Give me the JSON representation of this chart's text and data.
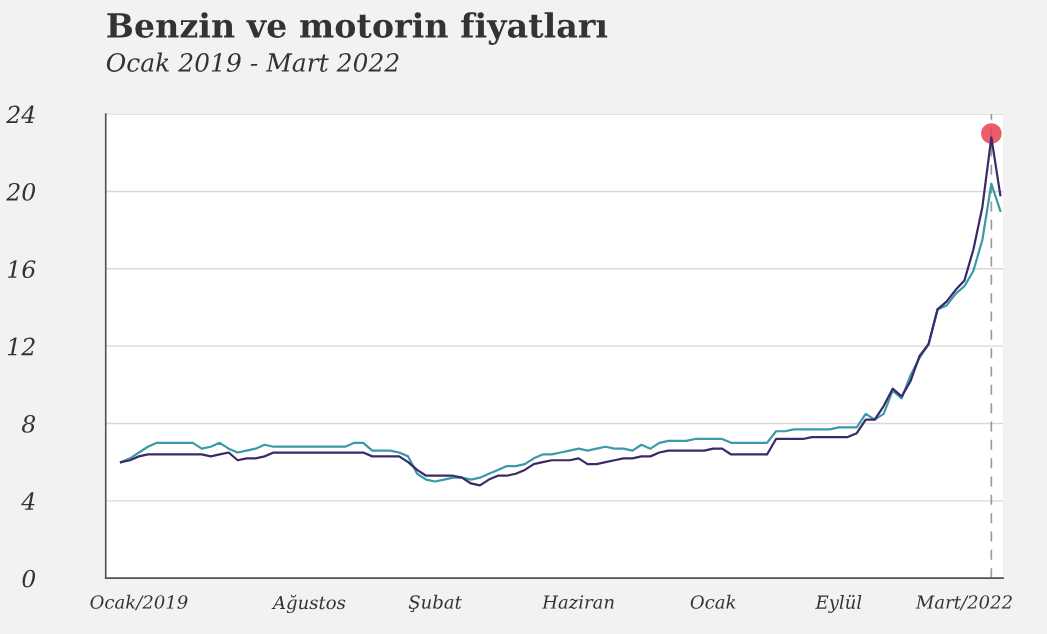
{
  "chart_data": {
    "type": "line",
    "title": "Benzin ve motorin fiyatları",
    "subtitle": "Ocak 2019 - Mart 2022",
    "categories": [
      null,
      null,
      "Ocak/2019",
      null,
      null,
      null,
      null,
      null,
      null,
      null,
      null,
      null,
      null,
      null,
      null,
      null,
      null,
      null,
      null,
      null,
      null,
      "Ağustos",
      null,
      null,
      null,
      null,
      null,
      null,
      null,
      null,
      null,
      null,
      null,
      null,
      null,
      "Şubat",
      null,
      null,
      null,
      null,
      null,
      null,
      null,
      null,
      null,
      null,
      null,
      null,
      null,
      null,
      null,
      "Haziran",
      null,
      null,
      null,
      null,
      null,
      null,
      null,
      null,
      null,
      null,
      null,
      null,
      null,
      null,
      "Ocak",
      null,
      null,
      null,
      null,
      null,
      null,
      null,
      null,
      null,
      null,
      null,
      null,
      null,
      "Eylül",
      null,
      null,
      null,
      null,
      null,
      null,
      null,
      null,
      null,
      null,
      null,
      null,
      null,
      "Mart/2022",
      null,
      null,
      null,
      null
    ],
    "ylim": [
      0,
      24
    ],
    "yticks": [
      0,
      4,
      8,
      12,
      16,
      20,
      24
    ],
    "grid": "y",
    "legend": false,
    "marker": "none",
    "line_style": "solid",
    "series": [
      {
        "color": "#3a9aa8",
        "values": [
          6.0,
          6.2,
          6.5,
          6.8,
          7.0,
          7.0,
          7.0,
          7.0,
          7.0,
          6.7,
          6.8,
          7.0,
          6.7,
          6.5,
          6.6,
          6.7,
          6.9,
          6.8,
          6.8,
          6.8,
          6.8,
          6.8,
          6.8,
          6.8,
          6.8,
          6.8,
          7.0,
          7.0,
          6.6,
          6.6,
          6.6,
          6.5,
          6.3,
          5.4,
          5.1,
          5.0,
          5.1,
          5.2,
          5.2,
          5.1,
          5.2,
          5.4,
          5.6,
          5.8,
          5.8,
          5.9,
          6.2,
          6.4,
          6.4,
          6.5,
          6.6,
          6.7,
          6.6,
          6.7,
          6.8,
          6.7,
          6.7,
          6.6,
          6.9,
          6.7,
          7.0,
          7.1,
          7.1,
          7.1,
          7.2,
          7.2,
          7.2,
          7.2,
          7.0,
          7.0,
          7.0,
          7.0,
          7.0,
          7.6,
          7.6,
          7.7,
          7.7,
          7.7,
          7.7,
          7.7,
          7.8,
          7.8,
          7.8,
          8.5,
          8.2,
          8.5,
          9.7,
          9.3,
          10.5,
          11.4,
          12.1,
          13.9,
          14.1,
          14.7,
          15.1,
          15.9,
          17.5,
          20.4,
          19.0
        ]
      },
      {
        "color": "#3b2a6b",
        "values": [
          6.0,
          6.1,
          6.3,
          6.4,
          6.4,
          6.4,
          6.4,
          6.4,
          6.4,
          6.4,
          6.3,
          6.4,
          6.5,
          6.1,
          6.2,
          6.2,
          6.3,
          6.5,
          6.5,
          6.5,
          6.5,
          6.5,
          6.5,
          6.5,
          6.5,
          6.5,
          6.5,
          6.5,
          6.3,
          6.3,
          6.3,
          6.3,
          6.0,
          5.6,
          5.3,
          5.3,
          5.3,
          5.3,
          5.2,
          4.9,
          4.8,
          5.1,
          5.3,
          5.3,
          5.4,
          5.6,
          5.9,
          6.0,
          6.1,
          6.1,
          6.1,
          6.2,
          5.9,
          5.9,
          6.0,
          6.1,
          6.2,
          6.2,
          6.3,
          6.3,
          6.5,
          6.6,
          6.6,
          6.6,
          6.6,
          6.6,
          6.7,
          6.7,
          6.4,
          6.4,
          6.4,
          6.4,
          6.4,
          7.2,
          7.2,
          7.2,
          7.2,
          7.3,
          7.3,
          7.3,
          7.3,
          7.3,
          7.5,
          8.2,
          8.2,
          8.9,
          9.8,
          9.4,
          10.2,
          11.5,
          12.1,
          13.9,
          14.3,
          14.9,
          15.4,
          17.0,
          19.2,
          22.8,
          19.8
        ]
      },
      {
        "type": "scatter",
        "color": "#e8414f",
        "marker": "circle",
        "values": [
          null,
          null,
          null,
          null,
          null,
          null,
          null,
          null,
          null,
          null,
          null,
          null,
          null,
          null,
          null,
          null,
          null,
          null,
          null,
          null,
          null,
          null,
          null,
          null,
          null,
          null,
          null,
          null,
          null,
          null,
          null,
          null,
          null,
          null,
          null,
          null,
          null,
          null,
          null,
          null,
          null,
          null,
          null,
          null,
          null,
          null,
          null,
          null,
          null,
          null,
          null,
          null,
          null,
          null,
          null,
          null,
          null,
          null,
          null,
          null,
          null,
          null,
          null,
          null,
          null,
          null,
          null,
          null,
          null,
          null,
          null,
          null,
          null,
          null,
          null,
          null,
          null,
          null,
          null,
          null,
          null,
          null,
          null,
          null,
          null,
          null,
          null,
          null,
          null,
          null,
          null,
          null,
          null,
          null,
          null,
          null,
          null,
          23.0,
          null
        ]
      }
    ]
  }
}
